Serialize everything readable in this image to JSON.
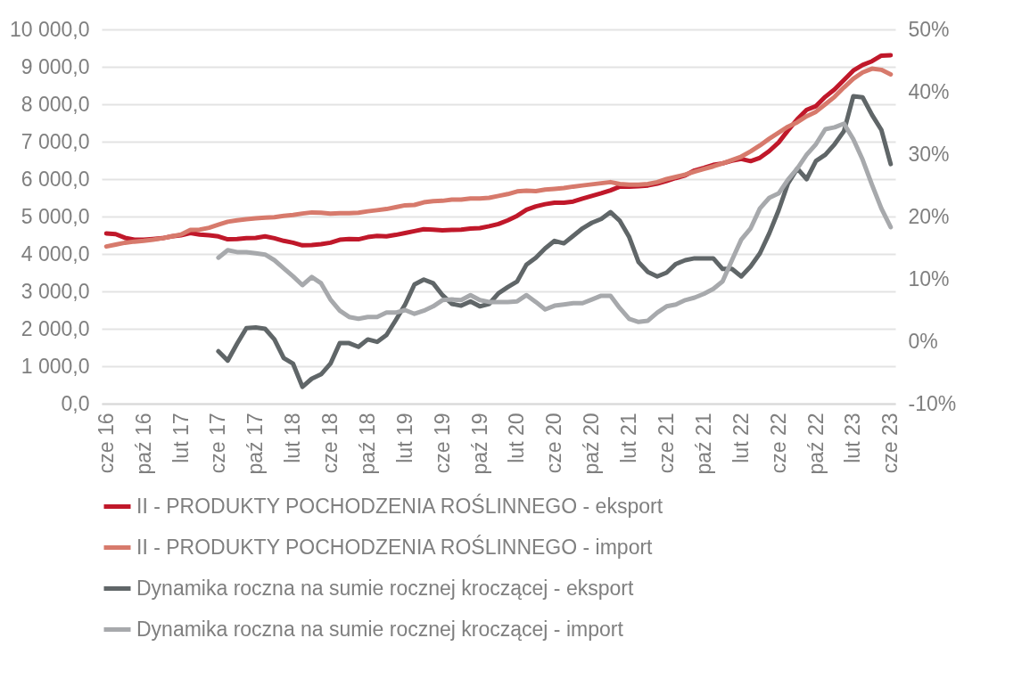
{
  "chart_data": {
    "type": "line",
    "categories": [
      "cze 16",
      null,
      null,
      null,
      "paź 16",
      null,
      null,
      null,
      "lut 17",
      null,
      null,
      null,
      "cze 17",
      null,
      null,
      null,
      "paź 17",
      null,
      null,
      null,
      "lut 18",
      null,
      null,
      null,
      "cze 18",
      null,
      null,
      null,
      "paź 18",
      null,
      null,
      null,
      "lut 19",
      null,
      null,
      null,
      "cze 19",
      null,
      null,
      null,
      "paź 19",
      null,
      null,
      null,
      "lut 20",
      null,
      null,
      null,
      "cze 20",
      null,
      null,
      null,
      "paź 20",
      null,
      null,
      null,
      "lut 21",
      null,
      null,
      null,
      "cze 21",
      null,
      null,
      null,
      "paź 21",
      null,
      null,
      null,
      "lut 22",
      null,
      null,
      null,
      "cze 22",
      null,
      null,
      null,
      "paź 22",
      null,
      null,
      null,
      "lut 23",
      null,
      null,
      null,
      "cze 23"
    ],
    "series": [
      {
        "name": "II - PRODUKTY POCHODZENIA ROŚLINNEGO - eksport",
        "color": "#c0182a",
        "values": [
          4550,
          4530,
          4430,
          4380,
          4380,
          4400,
          4420,
          4470,
          4500,
          4560,
          4520,
          4500,
          4470,
          4390,
          4400,
          4420,
          4430,
          4470,
          4420,
          4350,
          4300,
          4230,
          4240,
          4260,
          4300,
          4380,
          4400,
          4390,
          4450,
          4480,
          4470,
          4510,
          4560,
          4610,
          4660,
          4650,
          4630,
          4640,
          4650,
          4680,
          4690,
          4740,
          4800,
          4900,
          5020,
          5180,
          5270,
          5330,
          5370,
          5370,
          5400,
          5480,
          5550,
          5620,
          5700,
          5800,
          5800,
          5810,
          5830,
          5880,
          5950,
          6030,
          6100,
          6230,
          6300,
          6380,
          6420,
          6490,
          6540,
          6480,
          6570,
          6750,
          6980,
          7300,
          7600,
          7850,
          7950,
          8200,
          8400,
          8650,
          8900,
          9050,
          9150,
          9300,
          9310
        ]
      },
      {
        "name": "II - PRODUKTY POCHODZENIA ROŚLINNEGO - import",
        "color": "#d77a6c",
        "values": [
          4200,
          4250,
          4300,
          4330,
          4350,
          4380,
          4420,
          4470,
          4520,
          4640,
          4650,
          4700,
          4780,
          4860,
          4900,
          4930,
          4950,
          4970,
          4980,
          5020,
          5040,
          5080,
          5110,
          5100,
          5080,
          5090,
          5090,
          5100,
          5140,
          5170,
          5200,
          5250,
          5300,
          5310,
          5380,
          5410,
          5420,
          5450,
          5450,
          5480,
          5480,
          5500,
          5550,
          5600,
          5670,
          5690,
          5680,
          5720,
          5740,
          5760,
          5800,
          5830,
          5860,
          5890,
          5920,
          5870,
          5850,
          5850,
          5870,
          5920,
          6000,
          6060,
          6120,
          6200,
          6270,
          6340,
          6420,
          6510,
          6600,
          6740,
          6900,
          7080,
          7240,
          7400,
          7520,
          7680,
          7800,
          8000,
          8200,
          8450,
          8680,
          8850,
          8950,
          8920,
          8800
        ]
      },
      {
        "name": "Dynamika roczna na sumie rocznej kroczącej - eksport",
        "color": "#606668",
        "axis": "y2",
        "values": [
          null,
          null,
          null,
          null,
          null,
          null,
          null,
          null,
          null,
          null,
          null,
          null,
          -1.6,
          -3.1,
          -0.4,
          2.1,
          2.2,
          2.0,
          0.3,
          -2.7,
          -3.6,
          -7.3,
          -6.0,
          -5.3,
          -3.6,
          -0.3,
          -0.3,
          -0.9,
          0.3,
          -0.1,
          1.0,
          3.4,
          5.9,
          9.1,
          9.9,
          9.3,
          7.4,
          6.0,
          5.7,
          6.4,
          5.6,
          6.0,
          7.7,
          8.7,
          9.6,
          12.3,
          13.4,
          14.9,
          16.1,
          15.7,
          16.9,
          18.1,
          19.0,
          19.6,
          20.7,
          19.3,
          16.7,
          12.7,
          11.1,
          10.4,
          11.0,
          12.4,
          13.0,
          13.3,
          13.3,
          13.3,
          11.6,
          11.6,
          10.4,
          12.0,
          14.1,
          17.3,
          21.0,
          25.3,
          27.7,
          26.0,
          28.9,
          29.9,
          31.6,
          33.7,
          39.3,
          39.1,
          36.3,
          33.9,
          28.4
        ]
      },
      {
        "name": "Dynamika roczna na sumie rocznej kroczącej - import",
        "color": "#a7a9ac",
        "axis": "y2",
        "values": [
          null,
          null,
          null,
          null,
          null,
          null,
          null,
          null,
          null,
          null,
          null,
          null,
          13.4,
          14.6,
          14.3,
          14.3,
          14.1,
          13.9,
          13.0,
          11.7,
          10.4,
          9.0,
          10.3,
          9.3,
          6.7,
          4.9,
          3.9,
          3.6,
          3.9,
          3.9,
          4.6,
          4.6,
          5.0,
          4.4,
          4.9,
          5.6,
          6.6,
          6.7,
          6.6,
          7.4,
          6.6,
          6.3,
          6.3,
          6.3,
          6.4,
          7.4,
          6.3,
          5.1,
          5.7,
          5.9,
          6.1,
          6.1,
          6.7,
          7.3,
          7.3,
          5.3,
          3.6,
          3.1,
          3.3,
          4.6,
          5.6,
          5.9,
          6.6,
          7.0,
          7.6,
          8.4,
          9.6,
          13.0,
          16.3,
          18.1,
          21.3,
          23.0,
          23.7,
          25.9,
          27.7,
          29.9,
          31.6,
          34.0,
          34.3,
          34.9,
          32.4,
          29.1,
          25.1,
          21.3,
          18.3
        ]
      }
    ],
    "ylim": [
      0,
      10000
    ],
    "yticks": [
      {
        "value": 0,
        "label": "0,0"
      },
      {
        "value": 1000,
        "label": "1 000,0"
      },
      {
        "value": 2000,
        "label": "2 000,0"
      },
      {
        "value": 3000,
        "label": "3 000,0"
      },
      {
        "value": 4000,
        "label": "4 000,0"
      },
      {
        "value": 5000,
        "label": "5 000,0"
      },
      {
        "value": 6000,
        "label": "6 000,0"
      },
      {
        "value": 7000,
        "label": "7 000,0"
      },
      {
        "value": 8000,
        "label": "8 000,0"
      },
      {
        "value": 9000,
        "label": "9 000,0"
      },
      {
        "value": 10000,
        "label": "10 000,0"
      }
    ],
    "y2lim": [
      -10,
      50
    ],
    "y2ticks": [
      {
        "value": -10,
        "label": "-10%"
      },
      {
        "value": 0,
        "label": "0%"
      },
      {
        "value": 10,
        "label": "10%"
      },
      {
        "value": 20,
        "label": "20%"
      },
      {
        "value": 30,
        "label": "30%"
      },
      {
        "value": 40,
        "label": "40%"
      },
      {
        "value": 50,
        "label": "50%"
      }
    ],
    "grid": "y",
    "legend": "bottom",
    "line_style": "solid",
    "marker": "none"
  }
}
